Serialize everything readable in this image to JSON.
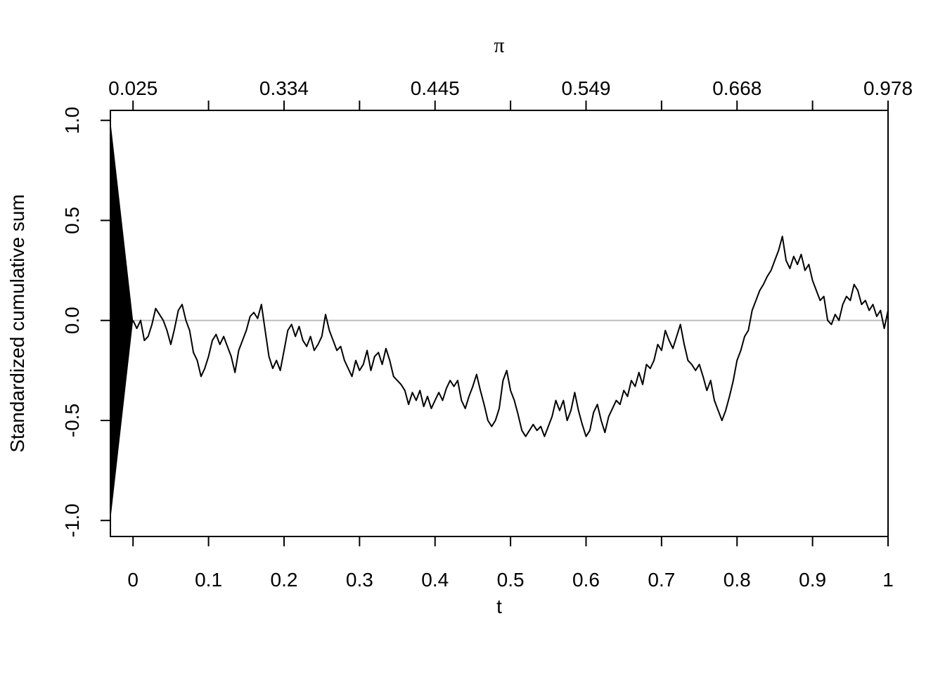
{
  "chart_data": {
    "type": "line",
    "xlabel": "t",
    "ylabel": "Standardized cumulative sum",
    "top_axis_label": "π",
    "xlim": [
      -0.03,
      1.0
    ],
    "ylim": [
      -1.08,
      1.05
    ],
    "x_ticks": [
      0,
      0.1,
      0.2,
      0.3,
      0.4,
      0.5,
      0.6,
      0.7,
      0.8,
      0.9,
      1
    ],
    "x_tick_labels": [
      "0",
      "0.1",
      "0.2",
      "0.3",
      "0.4",
      "0.5",
      "0.6",
      "0.7",
      "0.8",
      "0.9",
      "1"
    ],
    "y_ticks": [
      -1.0,
      -0.5,
      0.0,
      0.5,
      1.0
    ],
    "y_tick_labels": [
      "-1.0",
      "-0.5",
      "0.0",
      "0.5",
      "1.0"
    ],
    "top_ticks_t": [
      0,
      0.1,
      0.2,
      0.3,
      0.4,
      0.5,
      0.6,
      0.7,
      0.8,
      0.9,
      1
    ],
    "top_labeled_t": [
      0,
      0.2,
      0.4,
      0.6,
      0.8,
      1
    ],
    "top_tick_labels": [
      "0.025",
      "0.334",
      "0.445",
      "0.549",
      "0.668",
      "0.978"
    ],
    "reference_line": {
      "y": 0.0,
      "color": "#bebebe"
    },
    "bound_wedge": {
      "x_start": -0.03,
      "x_end": 0.0,
      "y_top": 1.0,
      "y_bottom": -1.0
    },
    "series": [
      {
        "color": "#000000",
        "points": [
          [
            0.0,
            0.0
          ],
          [
            0.005,
            -0.04
          ],
          [
            0.01,
            0.0
          ],
          [
            0.015,
            -0.1
          ],
          [
            0.02,
            -0.08
          ],
          [
            0.025,
            -0.02
          ],
          [
            0.03,
            0.06
          ],
          [
            0.035,
            0.03
          ],
          [
            0.04,
            0.0
          ],
          [
            0.045,
            -0.05
          ],
          [
            0.05,
            -0.12
          ],
          [
            0.055,
            -0.04
          ],
          [
            0.06,
            0.05
          ],
          [
            0.065,
            0.08
          ],
          [
            0.07,
            0.0
          ],
          [
            0.075,
            -0.05
          ],
          [
            0.08,
            -0.16
          ],
          [
            0.085,
            -0.2
          ],
          [
            0.09,
            -0.28
          ],
          [
            0.095,
            -0.24
          ],
          [
            0.1,
            -0.18
          ],
          [
            0.105,
            -0.1
          ],
          [
            0.11,
            -0.07
          ],
          [
            0.115,
            -0.12
          ],
          [
            0.12,
            -0.08
          ],
          [
            0.125,
            -0.13
          ],
          [
            0.13,
            -0.18
          ],
          [
            0.135,
            -0.26
          ],
          [
            0.14,
            -0.15
          ],
          [
            0.145,
            -0.1
          ],
          [
            0.15,
            -0.05
          ],
          [
            0.155,
            0.02
          ],
          [
            0.16,
            0.04
          ],
          [
            0.165,
            0.01
          ],
          [
            0.17,
            0.08
          ],
          [
            0.175,
            -0.05
          ],
          [
            0.18,
            -0.18
          ],
          [
            0.185,
            -0.24
          ],
          [
            0.19,
            -0.2
          ],
          [
            0.195,
            -0.25
          ],
          [
            0.2,
            -0.15
          ],
          [
            0.205,
            -0.05
          ],
          [
            0.21,
            -0.02
          ],
          [
            0.215,
            -0.08
          ],
          [
            0.22,
            -0.03
          ],
          [
            0.225,
            -0.1
          ],
          [
            0.23,
            -0.13
          ],
          [
            0.235,
            -0.08
          ],
          [
            0.24,
            -0.15
          ],
          [
            0.245,
            -0.12
          ],
          [
            0.25,
            -0.08
          ],
          [
            0.255,
            0.03
          ],
          [
            0.26,
            -0.05
          ],
          [
            0.265,
            -0.1
          ],
          [
            0.27,
            -0.15
          ],
          [
            0.275,
            -0.13
          ],
          [
            0.28,
            -0.2
          ],
          [
            0.285,
            -0.24
          ],
          [
            0.29,
            -0.28
          ],
          [
            0.295,
            -0.2
          ],
          [
            0.3,
            -0.25
          ],
          [
            0.305,
            -0.22
          ],
          [
            0.31,
            -0.15
          ],
          [
            0.315,
            -0.25
          ],
          [
            0.32,
            -0.18
          ],
          [
            0.325,
            -0.16
          ],
          [
            0.33,
            -0.22
          ],
          [
            0.335,
            -0.14
          ],
          [
            0.34,
            -0.2
          ],
          [
            0.345,
            -0.28
          ],
          [
            0.35,
            -0.3
          ],
          [
            0.355,
            -0.32
          ],
          [
            0.36,
            -0.35
          ],
          [
            0.365,
            -0.42
          ],
          [
            0.37,
            -0.36
          ],
          [
            0.375,
            -0.4
          ],
          [
            0.38,
            -0.35
          ],
          [
            0.385,
            -0.43
          ],
          [
            0.39,
            -0.38
          ],
          [
            0.395,
            -0.44
          ],
          [
            0.4,
            -0.4
          ],
          [
            0.405,
            -0.36
          ],
          [
            0.41,
            -0.4
          ],
          [
            0.415,
            -0.34
          ],
          [
            0.42,
            -0.3
          ],
          [
            0.425,
            -0.33
          ],
          [
            0.43,
            -0.3
          ],
          [
            0.435,
            -0.4
          ],
          [
            0.44,
            -0.44
          ],
          [
            0.445,
            -0.38
          ],
          [
            0.45,
            -0.33
          ],
          [
            0.455,
            -0.27
          ],
          [
            0.46,
            -0.35
          ],
          [
            0.465,
            -0.42
          ],
          [
            0.47,
            -0.5
          ],
          [
            0.475,
            -0.53
          ],
          [
            0.48,
            -0.5
          ],
          [
            0.485,
            -0.44
          ],
          [
            0.49,
            -0.3
          ],
          [
            0.495,
            -0.25
          ],
          [
            0.5,
            -0.35
          ],
          [
            0.505,
            -0.4
          ],
          [
            0.51,
            -0.47
          ],
          [
            0.515,
            -0.55
          ],
          [
            0.52,
            -0.58
          ],
          [
            0.525,
            -0.55
          ],
          [
            0.53,
            -0.52
          ],
          [
            0.535,
            -0.55
          ],
          [
            0.54,
            -0.53
          ],
          [
            0.545,
            -0.58
          ],
          [
            0.55,
            -0.53
          ],
          [
            0.555,
            -0.48
          ],
          [
            0.56,
            -0.4
          ],
          [
            0.565,
            -0.45
          ],
          [
            0.57,
            -0.4
          ],
          [
            0.575,
            -0.5
          ],
          [
            0.58,
            -0.45
          ],
          [
            0.585,
            -0.36
          ],
          [
            0.59,
            -0.45
          ],
          [
            0.595,
            -0.52
          ],
          [
            0.6,
            -0.58
          ],
          [
            0.605,
            -0.55
          ],
          [
            0.61,
            -0.46
          ],
          [
            0.615,
            -0.42
          ],
          [
            0.62,
            -0.5
          ],
          [
            0.625,
            -0.56
          ],
          [
            0.63,
            -0.48
          ],
          [
            0.635,
            -0.44
          ],
          [
            0.64,
            -0.4
          ],
          [
            0.645,
            -0.42
          ],
          [
            0.65,
            -0.35
          ],
          [
            0.655,
            -0.38
          ],
          [
            0.66,
            -0.3
          ],
          [
            0.665,
            -0.33
          ],
          [
            0.67,
            -0.26
          ],
          [
            0.675,
            -0.32
          ],
          [
            0.68,
            -0.22
          ],
          [
            0.685,
            -0.24
          ],
          [
            0.69,
            -0.2
          ],
          [
            0.695,
            -0.12
          ],
          [
            0.7,
            -0.15
          ],
          [
            0.705,
            -0.05
          ],
          [
            0.71,
            -0.1
          ],
          [
            0.715,
            -0.14
          ],
          [
            0.72,
            -0.08
          ],
          [
            0.725,
            -0.02
          ],
          [
            0.73,
            -0.12
          ],
          [
            0.735,
            -0.2
          ],
          [
            0.74,
            -0.22
          ],
          [
            0.745,
            -0.25
          ],
          [
            0.75,
            -0.22
          ],
          [
            0.755,
            -0.28
          ],
          [
            0.76,
            -0.35
          ],
          [
            0.765,
            -0.3
          ],
          [
            0.77,
            -0.4
          ],
          [
            0.775,
            -0.45
          ],
          [
            0.78,
            -0.5
          ],
          [
            0.785,
            -0.45
          ],
          [
            0.79,
            -0.38
          ],
          [
            0.795,
            -0.3
          ],
          [
            0.8,
            -0.2
          ],
          [
            0.805,
            -0.15
          ],
          [
            0.81,
            -0.08
          ],
          [
            0.815,
            -0.05
          ],
          [
            0.82,
            0.05
          ],
          [
            0.825,
            0.1
          ],
          [
            0.83,
            0.15
          ],
          [
            0.835,
            0.18
          ],
          [
            0.84,
            0.22
          ],
          [
            0.845,
            0.25
          ],
          [
            0.85,
            0.3
          ],
          [
            0.855,
            0.35
          ],
          [
            0.86,
            0.42
          ],
          [
            0.865,
            0.3
          ],
          [
            0.87,
            0.26
          ],
          [
            0.875,
            0.32
          ],
          [
            0.88,
            0.28
          ],
          [
            0.885,
            0.33
          ],
          [
            0.89,
            0.25
          ],
          [
            0.895,
            0.28
          ],
          [
            0.9,
            0.2
          ],
          [
            0.905,
            0.15
          ],
          [
            0.91,
            0.1
          ],
          [
            0.915,
            0.12
          ],
          [
            0.92,
            0.0
          ],
          [
            0.925,
            -0.02
          ],
          [
            0.93,
            0.03
          ],
          [
            0.935,
            0.0
          ],
          [
            0.94,
            0.08
          ],
          [
            0.945,
            0.12
          ],
          [
            0.95,
            0.1
          ],
          [
            0.955,
            0.18
          ],
          [
            0.96,
            0.15
          ],
          [
            0.965,
            0.08
          ],
          [
            0.97,
            0.1
          ],
          [
            0.975,
            0.05
          ],
          [
            0.98,
            0.08
          ],
          [
            0.985,
            0.02
          ],
          [
            0.99,
            0.05
          ],
          [
            0.995,
            -0.04
          ],
          [
            1.0,
            0.05
          ]
        ]
      }
    ]
  }
}
